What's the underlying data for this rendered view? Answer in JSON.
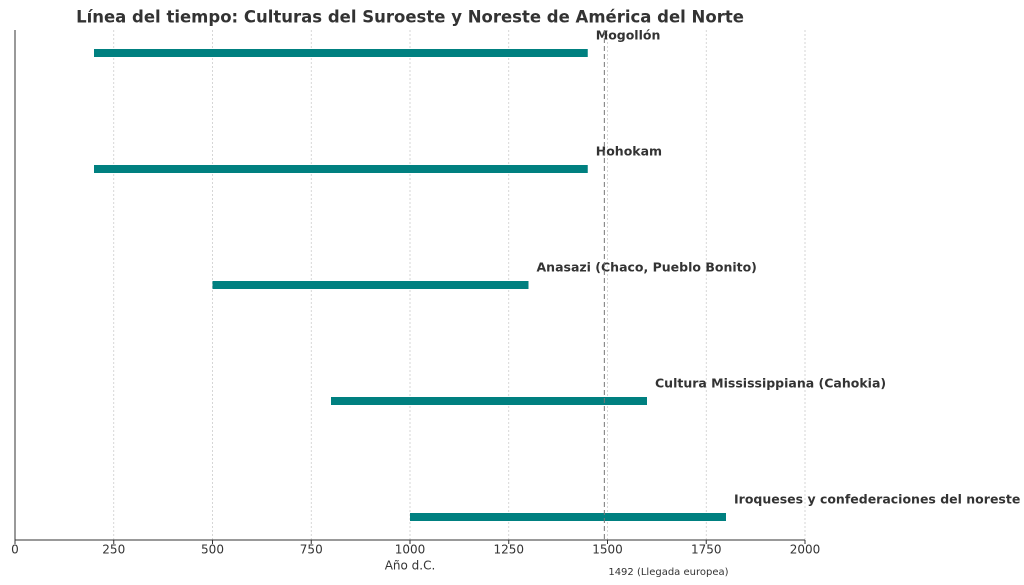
{
  "chart_data": {
    "type": "timeline",
    "title": "Línea del tiempo: Culturas del Suroeste y Noreste de América del Norte",
    "x_label": "Año d.C.",
    "categories": [
      "Mogollón",
      "Hohokam",
      "Anasazi (Chaco, Pueblo Bonito)",
      "Cultura Mississippiana (Cahokia)",
      "Iroquеses y confederaciones del noreste"
    ],
    "start": [
      200,
      200,
      500,
      800,
      1000
    ],
    "end": [
      1450,
      1450,
      1300,
      1600,
      1800
    ],
    "color": "#008080",
    "xlim": [
      0,
      2000
    ],
    "xticks": [
      0,
      250,
      500,
      750,
      1000,
      1250,
      1500,
      1750,
      2000
    ],
    "grid": true,
    "reference_line": {
      "value": 1492,
      "label": "1492 (Llegada europea)"
    }
  }
}
